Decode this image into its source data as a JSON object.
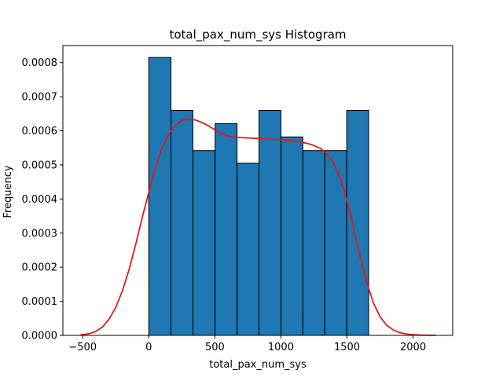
{
  "chart_data": {
    "type": "bar",
    "title": "total_pax_num_sys Histogram",
    "xlabel": "total_pax_num_sys",
    "ylabel": "Frequency",
    "xlim": [
      -650,
      2300
    ],
    "ylim": [
      0,
      0.00085
    ],
    "x_ticks": [
      -500,
      0,
      500,
      1000,
      1500,
      2000
    ],
    "x_tick_labels": [
      "−500",
      "0",
      "500",
      "1000",
      "1500",
      "2000"
    ],
    "y_ticks": [
      0,
      0.0001,
      0.0002,
      0.0003,
      0.0004,
      0.0005,
      0.0006,
      0.0007,
      0.0008
    ],
    "y_tick_labels": [
      "0.0000",
      "0.0001",
      "0.0002",
      "0.0003",
      "0.0004",
      "0.0005",
      "0.0006",
      "0.0007",
      "0.0008"
    ],
    "bins": [
      {
        "x0": 0,
        "x1": 168,
        "value": 0.000815
      },
      {
        "x0": 168,
        "x1": 334,
        "value": 0.00066
      },
      {
        "x0": 334,
        "x1": 502,
        "value": 0.000542
      },
      {
        "x0": 502,
        "x1": 668,
        "value": 0.000621
      },
      {
        "x0": 668,
        "x1": 834,
        "value": 0.000505
      },
      {
        "x0": 834,
        "x1": 1000,
        "value": 0.00066
      },
      {
        "x0": 1000,
        "x1": 1166,
        "value": 0.000582
      },
      {
        "x0": 1166,
        "x1": 1332,
        "value": 0.000542
      },
      {
        "x0": 1332,
        "x1": 1498,
        "value": 0.000542
      },
      {
        "x0": 1498,
        "x1": 1664,
        "value": 0.00066
      }
    ],
    "kde": {
      "name": "",
      "x": [
        -520,
        -450,
        -400,
        -350,
        -300,
        -250,
        -200,
        -150,
        -100,
        -50,
        0,
        50,
        100,
        150,
        200,
        250,
        300,
        350,
        400,
        450,
        500,
        550,
        600,
        650,
        700,
        750,
        800,
        850,
        900,
        950,
        1000,
        1050,
        1100,
        1150,
        1200,
        1250,
        1300,
        1350,
        1400,
        1450,
        1500,
        1550,
        1600,
        1650,
        1700,
        1750,
        1800,
        1850,
        1900,
        1950,
        2000,
        2050,
        2100,
        2170
      ],
      "y": [
        1e-06,
        5e-06,
        1.2e-05,
        2.5e-05,
        4.8e-05,
        8.2e-05,
        0.00013,
        0.000192,
        0.000265,
        0.000345,
        0.00042,
        0.000492,
        0.00055,
        0.00059,
        0.000615,
        0.00063,
        0.000635,
        0.000632,
        0.000625,
        0.000615,
        0.000603,
        0.000592,
        0.000585,
        0.000582,
        0.00058,
        0.000579,
        0.000578,
        0.000577,
        0.000576,
        0.000575,
        0.000574,
        0.000572,
        0.00057,
        0.000567,
        0.000563,
        0.000557,
        0.000548,
        0.000532,
        0.000505,
        0.00046,
        0.000395,
        0.000315,
        0.00023,
        0.000155,
        9.5e-05,
        5.5e-05,
        3e-05,
        1.6e-05,
        8e-06,
        4e-06,
        2e-06,
        1e-06,
        5e-07,
        2e-07
      ]
    },
    "colors": {
      "bar_fill": "#1f77b4",
      "bar_edge": "#000000",
      "kde": "#e31a1c"
    },
    "grid": false,
    "legend": "none"
  }
}
